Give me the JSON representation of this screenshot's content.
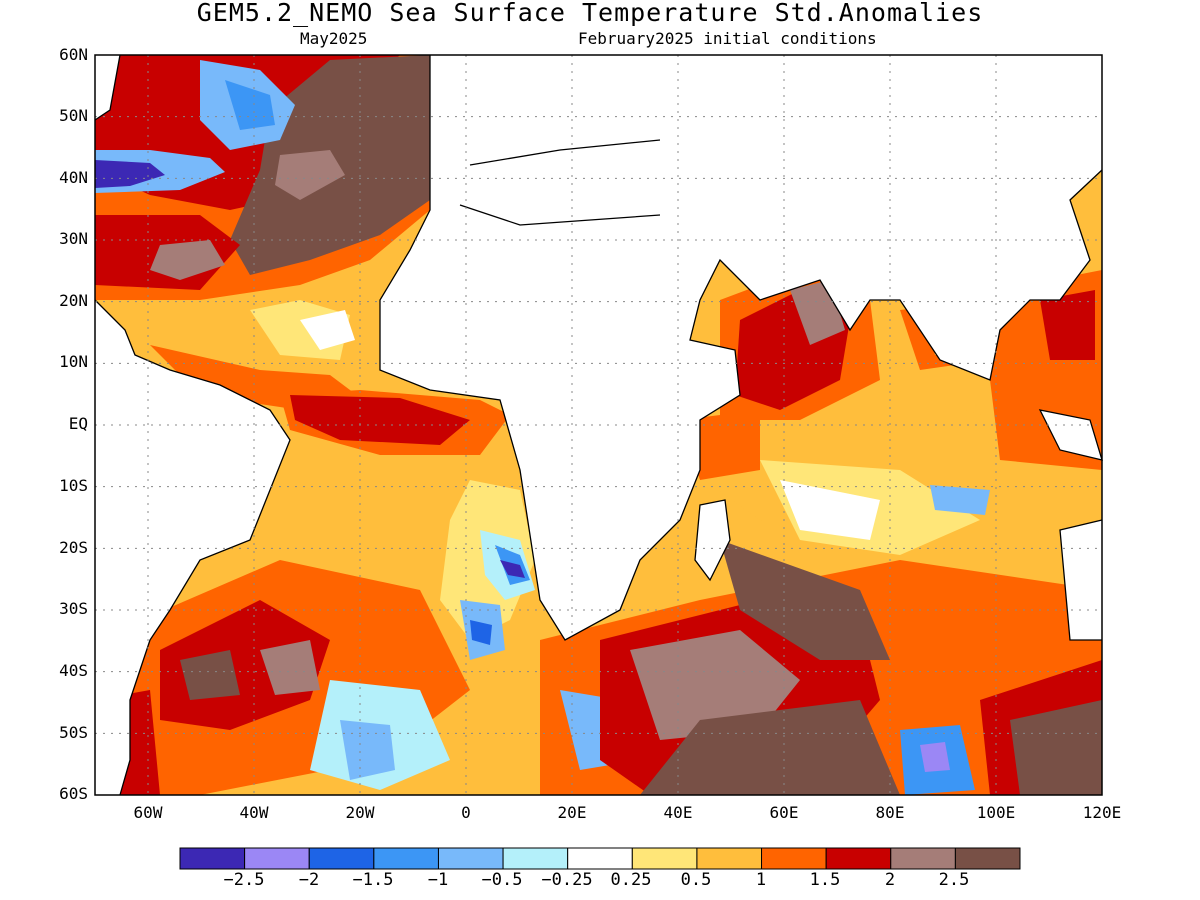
{
  "header": {
    "title": "GEM5.2_NEMO Sea Surface Temperature Std.Anomalies",
    "valid_month": "May2025",
    "init_conditions": "February2025 initial conditions"
  },
  "map": {
    "projection": "equirectangular",
    "lon_range": [
      -70,
      120
    ],
    "lat_range": [
      -60,
      60
    ],
    "lat_labels": [
      "60N",
      "50N",
      "40N",
      "30N",
      "20N",
      "10N",
      "EQ",
      "10S",
      "20S",
      "30S",
      "40S",
      "50S",
      "60S"
    ],
    "lon_labels": [
      "60W",
      "40W",
      "20W",
      "0",
      "20E",
      "40E",
      "60E",
      "80E",
      "100E",
      "120E"
    ],
    "grid": "dotted",
    "land_color": "#ffffff",
    "missing_color": "#ffffff"
  },
  "colorbar": {
    "colors": [
      "#3c28b4",
      "#9b87f5",
      "#1e64e6",
      "#3c96f5",
      "#78b9fa",
      "#b4f0fa",
      "#ffffff",
      "#ffe678",
      "#ffbe3c",
      "#ff6400",
      "#c80000",
      "#a57d78",
      "#785046"
    ],
    "labels": [
      "−2.5",
      "−2",
      "−1.5",
      "−1",
      "−0.5",
      "−0.25",
      "0.25",
      "0.5",
      "1",
      "1.5",
      "2",
      "2.5"
    ]
  }
}
